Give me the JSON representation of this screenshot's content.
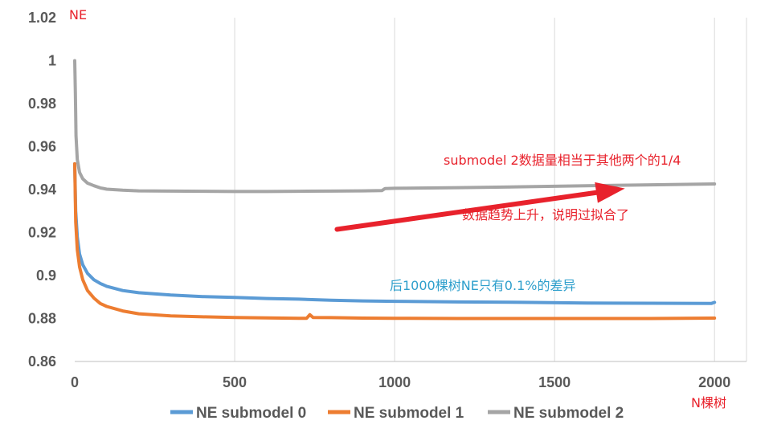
{
  "chart_data": {
    "type": "line",
    "title": "",
    "ylabel": "NE",
    "xlabel": "N棵树",
    "xlim": [
      0,
      2100
    ],
    "ylim": [
      0.86,
      1.02
    ],
    "x_ticks": [
      0,
      500,
      1000,
      1500,
      2000
    ],
    "y_ticks": [
      0.86,
      0.88,
      0.9,
      0.92,
      0.94,
      0.96,
      0.98,
      1,
      1.02
    ],
    "y_tick_labels": [
      "0.86",
      "0.88",
      "0.9",
      "0.92",
      "0.94",
      "0.96",
      "0.98",
      "1",
      "1.02"
    ],
    "grid": {
      "vertical": true,
      "horizontal": false
    },
    "legend_position": "bottom",
    "series": [
      {
        "name": "NE submodel 0",
        "color": "#5B9BD5",
        "points": [
          [
            0,
            0.952
          ],
          [
            3,
            0.93
          ],
          [
            8,
            0.918
          ],
          [
            15,
            0.91
          ],
          [
            25,
            0.905
          ],
          [
            40,
            0.901
          ],
          [
            60,
            0.898
          ],
          [
            80,
            0.8963
          ],
          [
            100,
            0.895
          ],
          [
            150,
            0.893
          ],
          [
            200,
            0.892
          ],
          [
            300,
            0.8909
          ],
          [
            400,
            0.8902
          ],
          [
            500,
            0.8898
          ],
          [
            600,
            0.8893
          ],
          [
            700,
            0.889
          ],
          [
            800,
            0.8885
          ],
          [
            900,
            0.8882
          ],
          [
            1000,
            0.888
          ],
          [
            1200,
            0.8877
          ],
          [
            1400,
            0.8875
          ],
          [
            1600,
            0.8872
          ],
          [
            1800,
            0.8871
          ],
          [
            1990,
            0.887
          ],
          [
            2000,
            0.8875
          ]
        ]
      },
      {
        "name": "NE submodel 1",
        "color": "#ED7D31",
        "points": [
          [
            0,
            0.952
          ],
          [
            3,
            0.925
          ],
          [
            8,
            0.912
          ],
          [
            15,
            0.904
          ],
          [
            25,
            0.898
          ],
          [
            40,
            0.893
          ],
          [
            60,
            0.8895
          ],
          [
            80,
            0.887
          ],
          [
            100,
            0.8856
          ],
          [
            150,
            0.8835
          ],
          [
            200,
            0.8822
          ],
          [
            300,
            0.8812
          ],
          [
            400,
            0.8808
          ],
          [
            500,
            0.8805
          ],
          [
            600,
            0.8803
          ],
          [
            700,
            0.8801
          ],
          [
            725,
            0.8801
          ],
          [
            735,
            0.8818
          ],
          [
            745,
            0.8805
          ],
          [
            800,
            0.8804
          ],
          [
            900,
            0.8802
          ],
          [
            1000,
            0.8801
          ],
          [
            1200,
            0.88
          ],
          [
            1400,
            0.88
          ],
          [
            1600,
            0.88
          ],
          [
            1800,
            0.88
          ],
          [
            2000,
            0.8802
          ]
        ]
      },
      {
        "name": "NE submodel 2",
        "color": "#A5A5A5",
        "points": [
          [
            0,
            1.0
          ],
          [
            2,
            0.985
          ],
          [
            4,
            0.965
          ],
          [
            8,
            0.954
          ],
          [
            15,
            0.948
          ],
          [
            25,
            0.945
          ],
          [
            40,
            0.943
          ],
          [
            60,
            0.9418
          ],
          [
            80,
            0.9408
          ],
          [
            100,
            0.9402
          ],
          [
            150,
            0.9397
          ],
          [
            200,
            0.9394
          ],
          [
            300,
            0.9393
          ],
          [
            400,
            0.9392
          ],
          [
            500,
            0.9391
          ],
          [
            600,
            0.9391
          ],
          [
            700,
            0.9392
          ],
          [
            800,
            0.9393
          ],
          [
            900,
            0.9394
          ],
          [
            960,
            0.9395
          ],
          [
            970,
            0.9405
          ],
          [
            1000,
            0.9406
          ],
          [
            1200,
            0.9409
          ],
          [
            1400,
            0.9413
          ],
          [
            1600,
            0.9418
          ],
          [
            1800,
            0.9422
          ],
          [
            2000,
            0.9426
          ]
        ]
      }
    ],
    "annotations": [
      {
        "text": "submodel 2数据量相当于其他两个的1/4",
        "color": "#E8222C"
      },
      {
        "text": "数据趋势上升，说明过拟合了",
        "color": "#E8222C"
      },
      {
        "text": "后1000棵树NE只有0.1%的差异",
        "color": "#2E9FCC"
      }
    ],
    "arrow": {
      "from": [
        820,
        0.9215
      ],
      "to": [
        1720,
        0.9405
      ],
      "color": "#E8222C"
    }
  }
}
